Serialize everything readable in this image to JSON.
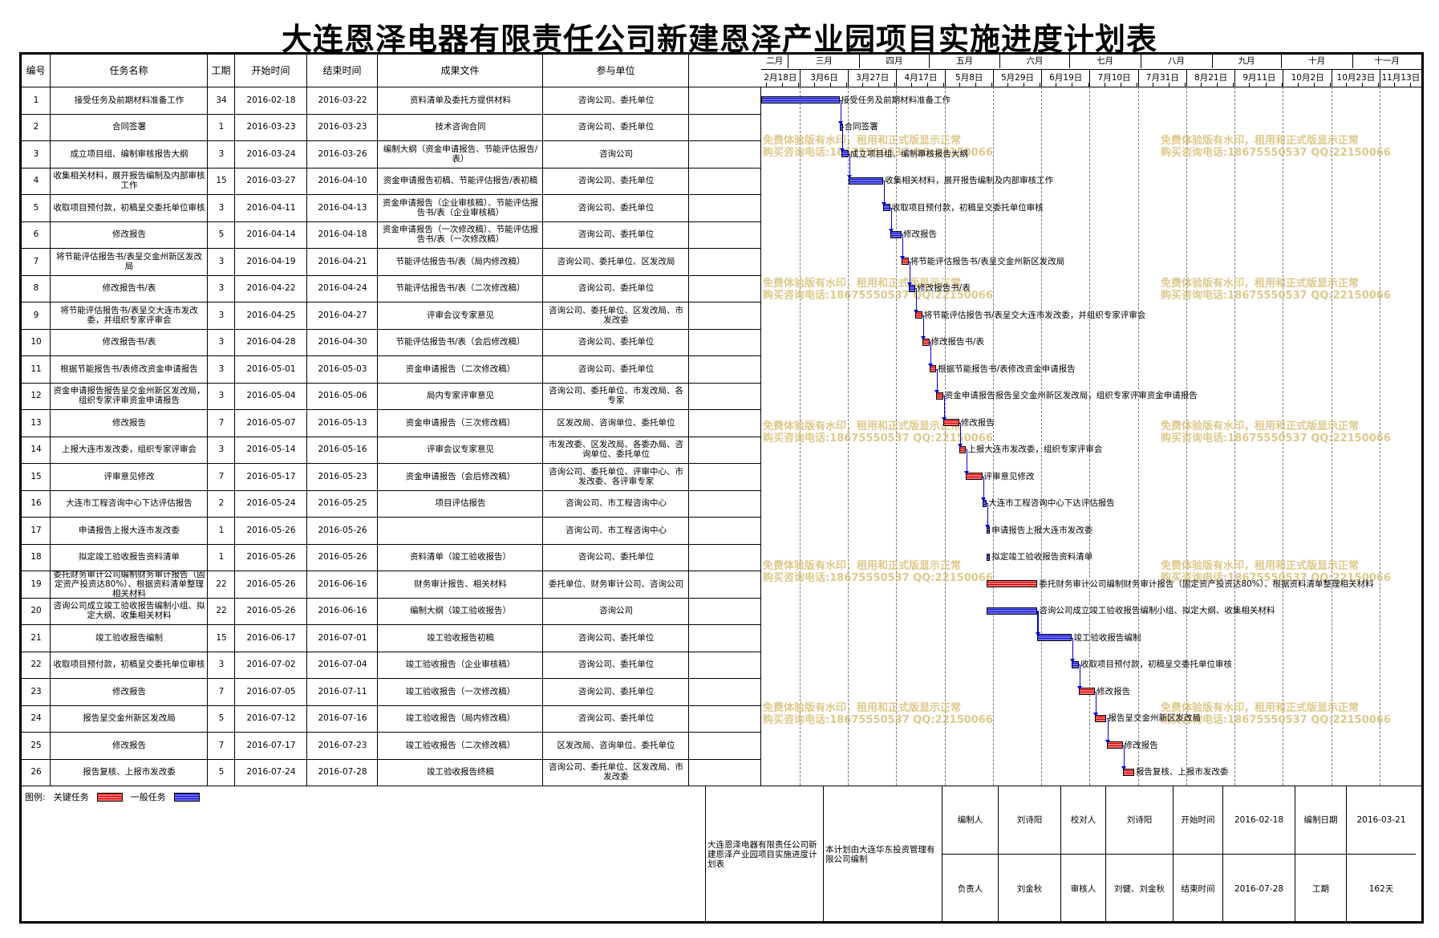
{
  "title": "大连恩泽电器有限责任公司新建恩泽产业园项目实施进度计划表",
  "headers": [
    "编号",
    "任务名称",
    "工期",
    "开始时间",
    "结束时间",
    "成果文件",
    "参与单位"
  ],
  "months": [
    "二月",
    "三月",
    "四月",
    "五月",
    "六月",
    "七月",
    "八月",
    "九月",
    "十月",
    "十一月"
  ],
  "weeks": [
    "2月18日",
    "3月6日",
    "3月27日",
    "4月17日",
    "5月8日",
    "5月29日",
    "6月19日",
    "7月10日",
    "7月31日",
    "8月21日",
    "9月11日",
    "10月2日",
    "10月23日",
    "11月13日"
  ],
  "chart_data": {
    "type": "gantt",
    "timeline_start": "2016-02-18",
    "timeline_end": "2016-11-30",
    "tasks": [
      {
        "id": "1",
        "name": "接受任务及前期材料准备工作",
        "duration": "34",
        "start": "2016-02-18",
        "end": "2016-03-22",
        "output": "资料清单及委托方提供材料",
        "units": "咨询公司、委托单位",
        "critical": false
      },
      {
        "id": "2",
        "name": "合同签署",
        "duration": "1",
        "start": "2016-03-23",
        "end": "2016-03-23",
        "output": "技术咨询合同",
        "units": "咨询公司、委托单位",
        "critical": false
      },
      {
        "id": "3",
        "name": "成立项目组、编制审核报告大纲",
        "duration": "3",
        "start": "2016-03-24",
        "end": "2016-03-26",
        "output": "编制大纲（资金申请报告、节能评估报告/表）",
        "units": "咨询公司",
        "critical": false
      },
      {
        "id": "4",
        "name": "收集相关材料，展开报告编制及内部审核工作",
        "duration": "15",
        "start": "2016-03-27",
        "end": "2016-04-10",
        "output": "资金申请报告初稿、节能评估报告/表初稿",
        "units": "咨询公司、委托单位",
        "critical": false
      },
      {
        "id": "5",
        "name": "收取项目预付款，初稿呈交委托单位审核",
        "duration": "3",
        "start": "2016-04-11",
        "end": "2016-04-13",
        "output": "资金申请报告（企业审核稿）、节能评估报告书/表（企业审核稿）",
        "units": "咨询公司、委托单位",
        "critical": false
      },
      {
        "id": "6",
        "name": "修改报告",
        "duration": "5",
        "start": "2016-04-14",
        "end": "2016-04-18",
        "output": "资金申请报告（一次修改稿）、节能评估报告书/表（一次修改稿）",
        "units": "咨询公司、委托单位",
        "critical": false
      },
      {
        "id": "7",
        "name": "将节能评估报告书/表呈交金州新区发改局",
        "duration": "3",
        "start": "2016-04-19",
        "end": "2016-04-21",
        "output": "节能评估报告书/表（局内修改稿）",
        "units": "咨询公司、委托单位、区发改局",
        "critical": true
      },
      {
        "id": "8",
        "name": "修改报告书/表",
        "duration": "3",
        "start": "2016-04-22",
        "end": "2016-04-24",
        "output": "节能评估报告书/表（二次修改稿）",
        "units": "咨询公司、委托单位",
        "critical": false
      },
      {
        "id": "9",
        "name": "将节能评估报告书/表呈交大连市发改委，并组织专家评审会",
        "duration": "3",
        "start": "2016-04-25",
        "end": "2016-04-27",
        "output": "评审会议专家意见",
        "units": "咨询公司、委托单位、区发改局、市发改委",
        "critical": true
      },
      {
        "id": "10",
        "name": "修改报告书/表",
        "duration": "3",
        "start": "2016-04-28",
        "end": "2016-04-30",
        "output": "节能评估报告书/表（会后修改稿）",
        "units": "咨询公司、委托单位",
        "critical": true
      },
      {
        "id": "11",
        "name": "根据节能报告书/表修改资金申请报告",
        "duration": "3",
        "start": "2016-05-01",
        "end": "2016-05-03",
        "output": "资金申请报告（二次修改稿）",
        "units": "咨询公司、委托单位",
        "critical": true
      },
      {
        "id": "12",
        "name": "资金申请报告报告呈交金州新区发改局，组织专家评审资金申请报告",
        "duration": "3",
        "start": "2016-05-04",
        "end": "2016-05-06",
        "output": "局内专家评审意见",
        "units": "咨询公司、委托单位、市发改局、各专家",
        "critical": true
      },
      {
        "id": "13",
        "name": "修改报告",
        "duration": "7",
        "start": "2016-05-07",
        "end": "2016-05-13",
        "output": "资金申请报告（三次修改稿）",
        "units": "区发改局、咨询单位、委托单位",
        "critical": true
      },
      {
        "id": "14",
        "name": "上报大连市发改委，组织专家评审会",
        "duration": "3",
        "start": "2016-05-14",
        "end": "2016-05-16",
        "output": "评审会议专家意见",
        "units": "市发改委、区发改局、各委办局、咨询单位、委托单位",
        "critical": true
      },
      {
        "id": "15",
        "name": "评审意见修改",
        "duration": "7",
        "start": "2016-05-17",
        "end": "2016-05-23",
        "output": "资金申请报告（会后修改稿）",
        "units": "咨询公司、委托单位、评审中心、市发改委、各评审专家",
        "critical": true
      },
      {
        "id": "16",
        "name": "大连市工程咨询中心下达评估报告",
        "duration": "2",
        "start": "2016-05-24",
        "end": "2016-05-25",
        "output": "项目评估报告",
        "units": "咨询公司、市工程咨询中心",
        "critical": false
      },
      {
        "id": "17",
        "name": "申请报告上报大连市发改委",
        "duration": "1",
        "start": "2016-05-26",
        "end": "2016-05-26",
        "output": "",
        "units": "咨询公司、市工程咨询中心",
        "critical": false
      },
      {
        "id": "18",
        "name": "拟定竣工验收报告资料清单",
        "duration": "1",
        "start": "2016-05-26",
        "end": "2016-05-26",
        "output": "资料清单（竣工验收报告）",
        "units": "咨询公司、委托单位",
        "critical": false
      },
      {
        "id": "19",
        "name": "委托财务审计公司编制财务审计报告（固定资产投资达80%）、根据资料清单整理相关材料",
        "duration": "22",
        "start": "2016-05-26",
        "end": "2016-06-16",
        "output": "财务审计报告、相关材料",
        "units": "委托单位、财务审计公司、咨询公司",
        "critical": true
      },
      {
        "id": "20",
        "name": "咨询公司成立竣工验收报告编制小组、拟定大纲、收集相关材料",
        "duration": "22",
        "start": "2016-05-26",
        "end": "2016-06-16",
        "output": "编制大纲（竣工验收报告）",
        "units": "咨询公司",
        "critical": false
      },
      {
        "id": "21",
        "name": "竣工验收报告编制",
        "duration": "15",
        "start": "2016-06-17",
        "end": "2016-07-01",
        "output": "竣工验收报告初稿",
        "units": "咨询公司、委托单位",
        "critical": false
      },
      {
        "id": "22",
        "name": "收取项目预付款，初稿呈交委托单位审核",
        "duration": "3",
        "start": "2016-07-02",
        "end": "2016-07-04",
        "output": "竣工验收报告（企业审核稿）",
        "units": "咨询公司、委托单位",
        "critical": false
      },
      {
        "id": "23",
        "name": "修改报告",
        "duration": "7",
        "start": "2016-07-05",
        "end": "2016-07-11",
        "output": "竣工验收报告（一次修改稿）",
        "units": "咨询公司、委托单位",
        "critical": true
      },
      {
        "id": "24",
        "name": "报告呈交金州新区发改局",
        "duration": "5",
        "start": "2016-07-12",
        "end": "2016-07-16",
        "output": "竣工验收报告（局内修改稿）",
        "units": "咨询公司、委托单位",
        "critical": true
      },
      {
        "id": "25",
        "name": "修改报告",
        "duration": "7",
        "start": "2016-07-17",
        "end": "2016-07-23",
        "output": "竣工验收报告（二次修改稿）",
        "units": "区发改局、咨询单位、委托单位",
        "critical": true
      },
      {
        "id": "26",
        "name": "报告复核、上报市发改委",
        "duration": "5",
        "start": "2016-07-24",
        "end": "2016-07-28",
        "output": "竣工验收报告终稿",
        "units": "咨询公司、委托单位、区发改局、市发改委",
        "critical": true
      }
    ],
    "colors": {
      "critical": "#e24a4a",
      "normal": "#3c3ce6",
      "link": "#0000cc"
    }
  },
  "bar_labels": {
    "1": "接受任务及前期材料准备工作",
    "2": "合同签署",
    "3": "成立项目组、编制审核报告大纲",
    "4": "收集相关材料，展开报告编制及内部审核工作",
    "5": "收取项目预付款，初稿呈交委托单位审核",
    "6": "修改报告",
    "7": "将节能评估报告书/表呈交金州新区发改局",
    "8": "修改报告书/表",
    "9": "将节能评估报告书/表呈交大连市发改委，并组织专家评审会",
    "10": "修改报告书/表",
    "11": "根据节能报告书/表修改资金申请报告",
    "12": "资金申请报告报告呈交金州新区发改局，组织专家评审资金申请报告",
    "13": "修改报告",
    "14": "上报大连市发改委，组织专家评审会",
    "15": "评审意见修改",
    "16": "大连市工程咨询中心下达评估报告",
    "17": "申请报告上报大连市发改委",
    "18": "拟定竣工验收报告资料清单",
    "19": "委托财务审计公司编制财务审计报告（固定资产投资达80%）、根据资料清单整理相关材料",
    "20": "咨询公司成立竣工验收报告编制小组、拟定大纲、收集相关材料",
    "21": "竣工验收报告编制",
    "22": "收取项目预付款，初稿呈交委托单位审核",
    "23": "修改报告",
    "24": "报告呈交金州新区发改局",
    "25": "修改报告",
    "26": "报告复核、上报市发改委"
  },
  "watermark": {
    "line1": "免费体验版有水印，租用和正式版显示正常",
    "line2": "购买咨询电话:18675550537 QQ:22150066"
  },
  "legend": {
    "label": "图例:",
    "critical": "关键任务",
    "normal": "一般任务"
  },
  "footer": {
    "project": "大连恩泽电器有限责任公司新建恩泽产业园项目实施进度计划表",
    "note": "本计划由大连华东投资管理有限公司编制",
    "cells": [
      [
        "编制人",
        "刘诗阳",
        "校对人",
        "刘诗阳",
        "开始时间",
        "2016-02-18",
        "编制日期",
        "2016-03-21"
      ],
      [
        "负责人",
        "刘金秋",
        "审核人",
        "刘健、刘金秋",
        "结束时间",
        "2016-07-28",
        "工期",
        "162天"
      ]
    ]
  }
}
